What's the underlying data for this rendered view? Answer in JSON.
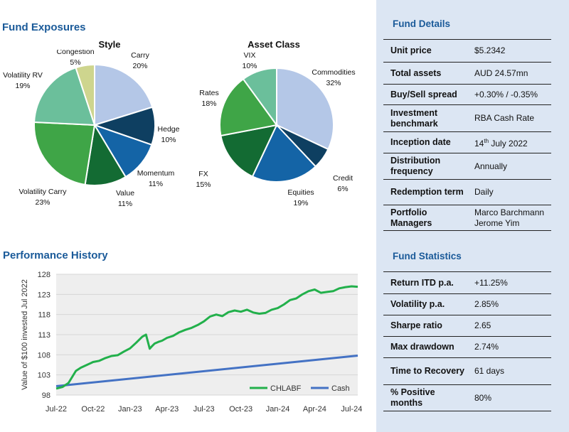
{
  "headings": {
    "fund_exposures": "Fund Exposures",
    "performance_history": "Performance History",
    "fund_details": "Fund Details",
    "fund_statistics": "Fund Statistics"
  },
  "chart_data": [
    {
      "type": "pie",
      "title": "Style",
      "labels": [
        "Carry",
        "Hedge",
        "Momentum",
        "Value",
        "Volatility Carry",
        "Volatility RV",
        "Congestion"
      ],
      "values": [
        20,
        10,
        11,
        11,
        23,
        19,
        5
      ],
      "value_labels": [
        "20%",
        "10%",
        "11%",
        "11%",
        "23%",
        "19%",
        "5%"
      ],
      "colors": [
        "#b4c7e7",
        "#0e3f61",
        "#1464a6",
        "#136b33",
        "#3fa547",
        "#6bbf9b",
        "#ced58e"
      ]
    },
    {
      "type": "pie",
      "title": "Asset Class",
      "labels": [
        "Commodities",
        "Credit",
        "Equities",
        "FX",
        "Rates",
        "VIX"
      ],
      "values": [
        32,
        6,
        19,
        15,
        18,
        10
      ],
      "value_labels": [
        "32%",
        "6%",
        "19%",
        "15%",
        "18%",
        "10%"
      ],
      "colors": [
        "#b4c7e7",
        "#0e3f61",
        "#1464a6",
        "#136b33",
        "#3fa547",
        "#6bbf9b"
      ]
    },
    {
      "type": "line",
      "title": "Performance History",
      "ylabel": "Value of $100 invested Jul 2022",
      "xlabel": "",
      "x_ticks": [
        "Jul-22",
        "Oct-22",
        "Jan-23",
        "Apr-23",
        "Jul-23",
        "Oct-23",
        "Jan-24",
        "Apr-24",
        "Jul-24"
      ],
      "y_ticks": [
        98,
        103,
        108,
        113,
        118,
        123,
        128
      ],
      "ylim": [
        98,
        128
      ],
      "xlim": [
        0,
        24.5
      ],
      "series": [
        {
          "name": "CHLABF",
          "color": "#22b04b",
          "x": [
            0,
            0.5,
            1,
            1.3,
            1.6,
            2,
            2.5,
            3,
            3.5,
            4,
            4.5,
            5,
            5.5,
            6,
            6.5,
            7,
            7.3,
            7.6,
            7.8,
            8,
            8.3,
            8.6,
            9,
            9.5,
            10,
            10.5,
            11,
            11.5,
            12,
            12.5,
            13,
            13.5,
            14,
            14.5,
            15,
            15.5,
            16,
            16.5,
            17,
            17.5,
            18,
            18.5,
            19,
            19.5,
            20,
            20.5,
            21,
            21.5,
            22,
            22.5,
            23,
            23.5,
            24,
            24.5
          ],
          "values": [
            99.6,
            100.0,
            101.0,
            102.5,
            104.0,
            104.8,
            105.5,
            106.2,
            106.5,
            107.2,
            107.7,
            107.9,
            108.8,
            109.6,
            111.0,
            112.5,
            113.0,
            109.5,
            110.2,
            110.8,
            111.2,
            111.5,
            112.2,
            112.7,
            113.6,
            114.2,
            114.7,
            115.4,
            116.3,
            117.5,
            118.0,
            117.6,
            118.6,
            119.0,
            118.7,
            119.2,
            118.5,
            118.2,
            118.4,
            119.2,
            119.6,
            120.5,
            121.6,
            122.0,
            123.0,
            123.8,
            124.2,
            123.4,
            123.6,
            123.8,
            124.5,
            124.8,
            125.0,
            124.9
          ]
        },
        {
          "name": "Cash",
          "color": "#4472c4",
          "x": [
            0,
            24.5
          ],
          "values": [
            100.2,
            107.8
          ]
        }
      ]
    }
  ],
  "fund_details": [
    {
      "key": "Unit price",
      "value": "$5.2342"
    },
    {
      "key": "Total assets",
      "value": "AUD 24.57mn"
    },
    {
      "key": "Buy/Sell spread",
      "value": "+0.30% / -0.35%"
    },
    {
      "key": "Investment benchmark",
      "value": "RBA Cash Rate"
    },
    {
      "key": "Inception date",
      "value": "14",
      "value_sup": "th",
      "value_rest": " July 2022"
    },
    {
      "key": "Distribution frequency",
      "value": "Annually"
    },
    {
      "key": "Redemption term",
      "value": "Daily"
    },
    {
      "key": "Portfolio Managers",
      "value": "Marco Barchmann",
      "value2": "Jerome Yim"
    }
  ],
  "fund_statistics": [
    {
      "key": "Return ITD p.a.",
      "value": "+11.25%"
    },
    {
      "key": "Volatility p.a.",
      "value": "2.85%"
    },
    {
      "key": "Sharpe ratio",
      "value": "2.65"
    },
    {
      "key": "Max drawdown",
      "value": "2.74%"
    },
    {
      "key": "Time to Recovery",
      "value": "61 days"
    },
    {
      "key": "% Positive months",
      "value": "80%"
    }
  ]
}
